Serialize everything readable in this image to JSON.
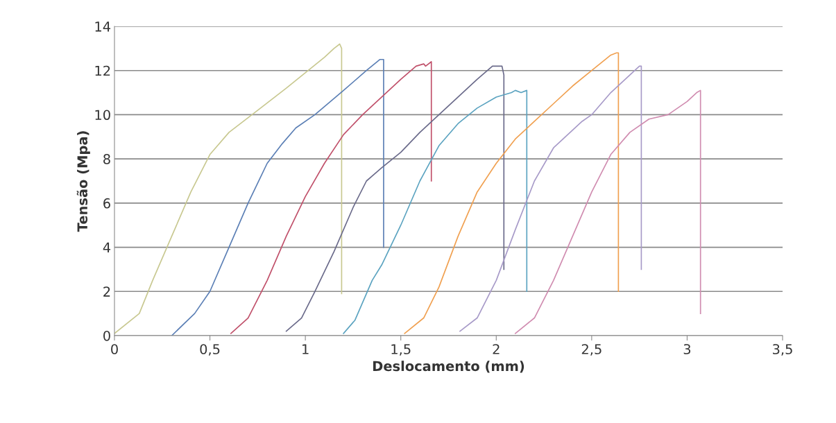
{
  "chart_data": {
    "type": "line",
    "xlabel": "Deslocamento (mm)",
    "ylabel": "Tensão (Mpa)",
    "xlim": [
      0,
      3.5
    ],
    "ylim": [
      0,
      14
    ],
    "xticks": [
      0,
      {
        "value": 0.5,
        "label": "0,5"
      },
      1,
      {
        "value": 1.5,
        "label": "1,5"
      },
      2,
      {
        "value": 2.5,
        "label": "2,5"
      },
      3,
      {
        "value": 3.5,
        "label": "3,5"
      }
    ],
    "yticks": [
      0,
      2,
      4,
      6,
      8,
      10,
      12,
      14
    ],
    "grid": "y",
    "legend": false,
    "marker": "none",
    "line_style": "solid",
    "series": [
      {
        "color": "#c8c890",
        "x": [
          0,
          0.13,
          0.2,
          0.3,
          0.4,
          0.5,
          0.6,
          0.75,
          0.9,
          1.0,
          1.1,
          1.15,
          1.18,
          1.19,
          1.19
        ],
        "values": [
          0.1,
          1,
          2.5,
          4.5,
          6.5,
          8.2,
          9.2,
          10.2,
          11.2,
          11.9,
          12.6,
          13.0,
          13.2,
          13.0,
          1.9
        ]
      },
      {
        "color": "#5b7fb5",
        "x": [
          0.3,
          0.42,
          0.5,
          0.6,
          0.7,
          0.8,
          0.88,
          0.95,
          1.05,
          1.2,
          1.32,
          1.39,
          1.41,
          1.41
        ],
        "values": [
          0,
          1,
          2,
          4,
          6,
          7.8,
          8.7,
          9.4,
          10.0,
          11.1,
          12.0,
          12.5,
          12.5,
          4.0
        ]
      },
      {
        "color": "#c0506a",
        "x": [
          0.61,
          0.7,
          0.8,
          0.9,
          1.0,
          1.1,
          1.2,
          1.3,
          1.4,
          1.5,
          1.58,
          1.62,
          1.63,
          1.66,
          1.66
        ],
        "values": [
          0.1,
          0.8,
          2.5,
          4.5,
          6.3,
          7.8,
          9.1,
          10.0,
          10.8,
          11.6,
          12.2,
          12.3,
          12.2,
          12.4,
          7.0
        ]
      },
      {
        "color": "#6a6a8a",
        "x": [
          0.9,
          0.98,
          1.05,
          1.15,
          1.25,
          1.32,
          1.4,
          1.5,
          1.6,
          1.7,
          1.8,
          1.9,
          1.98,
          2.03,
          2.04,
          2.04
        ],
        "values": [
          0.2,
          0.8,
          2,
          3.8,
          5.8,
          7.0,
          7.6,
          8.3,
          9.2,
          10.0,
          10.8,
          11.6,
          12.2,
          12.2,
          11.8,
          3.0
        ]
      },
      {
        "color": "#5ba3c0",
        "x": [
          1.2,
          1.26,
          1.35,
          1.4,
          1.5,
          1.6,
          1.7,
          1.8,
          1.9,
          2.0,
          2.08,
          2.1,
          2.13,
          2.16,
          2.16
        ],
        "values": [
          0.1,
          0.7,
          2.5,
          3.2,
          5.0,
          7.0,
          8.6,
          9.6,
          10.3,
          10.8,
          11.0,
          11.1,
          11.0,
          11.1,
          2.0
        ]
      },
      {
        "color": "#f0a050",
        "x": [
          1.52,
          1.62,
          1.7,
          1.8,
          1.9,
          2.0,
          2.1,
          2.2,
          2.3,
          2.4,
          2.5,
          2.6,
          2.63,
          2.64,
          2.64
        ],
        "values": [
          0.1,
          0.8,
          2.2,
          4.5,
          6.5,
          7.8,
          8.9,
          9.7,
          10.5,
          11.3,
          12.0,
          12.7,
          12.8,
          12.8,
          2.0
        ]
      },
      {
        "color": "#a79ac8",
        "x": [
          1.81,
          1.9,
          2.0,
          2.1,
          2.2,
          2.3,
          2.4,
          2.45,
          2.5,
          2.6,
          2.7,
          2.75,
          2.76,
          2.76
        ],
        "values": [
          0.2,
          0.8,
          2.5,
          4.8,
          7.0,
          8.5,
          9.3,
          9.7,
          10.0,
          11.0,
          11.8,
          12.2,
          12.2,
          3.0
        ]
      },
      {
        "color": "#d08cb0",
        "x": [
          2.1,
          2.2,
          2.3,
          2.4,
          2.5,
          2.6,
          2.7,
          2.8,
          2.9,
          3.0,
          3.05,
          3.07,
          3.07
        ],
        "values": [
          0.1,
          0.8,
          2.5,
          4.5,
          6.5,
          8.2,
          9.2,
          9.8,
          10.0,
          10.6,
          11.0,
          11.1,
          1.0
        ]
      }
    ]
  }
}
